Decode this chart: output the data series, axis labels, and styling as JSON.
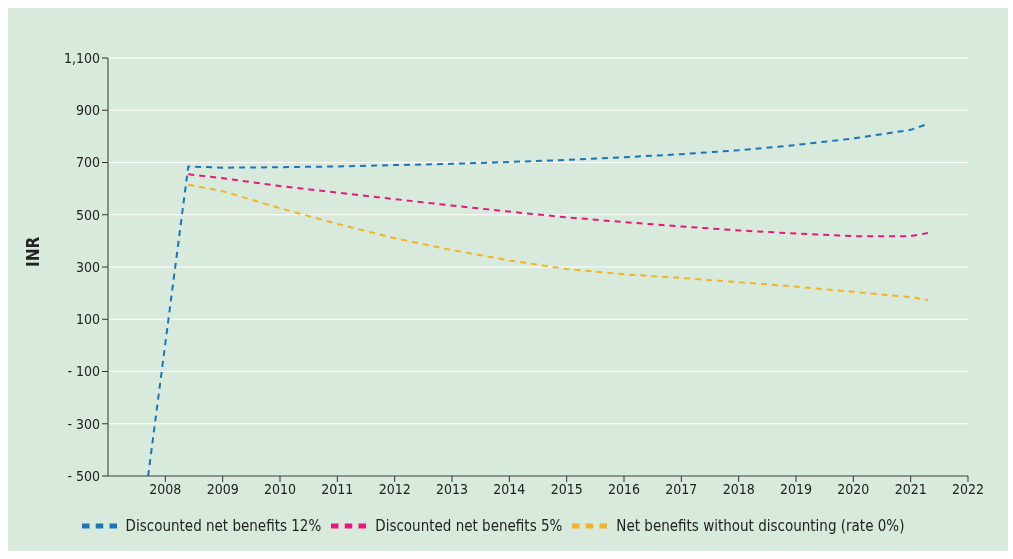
{
  "chart_data": {
    "type": "line",
    "ylabel": "INR",
    "line_style": "dashed",
    "marker": "none",
    "grid": "y",
    "legend": "bottom",
    "xlim": [
      2007,
      2022
    ],
    "xticks": [
      2008,
      2009,
      2010,
      2011,
      2012,
      2013,
      2014,
      2015,
      2016,
      2017,
      2018,
      2019,
      2020,
      2021,
      2022
    ],
    "ylim": [
      -500,
      1100
    ],
    "yticks": [
      {
        "value": 1100,
        "label": "1,100"
      },
      900,
      700,
      500,
      300,
      100,
      {
        "value": -100,
        "label": "- 100"
      },
      {
        "value": -300,
        "label": "- 300"
      },
      {
        "value": -500,
        "label": "- 500"
      }
    ],
    "series": [
      {
        "name": "Net benefits without discounting (rate 0%)",
        "color": "#f5b324",
        "x": [
          2008.4,
          2009,
          2010,
          2011,
          2012,
          2013,
          2014,
          2015,
          2016,
          2017,
          2018,
          2019,
          2020,
          2021,
          2021.3
        ],
        "values": [
          615,
          590,
          525,
          465,
          410,
          365,
          325,
          292,
          272,
          258,
          242,
          225,
          205,
          185,
          174
        ]
      },
      {
        "name": "Discounted net benefits 5%",
        "color": "#e5197d",
        "x": [
          2008.4,
          2009,
          2010,
          2011,
          2012,
          2013,
          2014,
          2015,
          2016,
          2017,
          2018,
          2019,
          2020,
          2021,
          2021.3
        ],
        "values": [
          655,
          640,
          610,
          585,
          560,
          535,
          512,
          490,
          472,
          455,
          440,
          428,
          418,
          418,
          430
        ]
      },
      {
        "name": "Discounted net benefits 12%",
        "color": "#1a75bb",
        "x": [
          2007.7,
          2008.4,
          2009,
          2010,
          2011,
          2012,
          2013,
          2014,
          2015,
          2016,
          2017,
          2018,
          2019,
          2020,
          2021,
          2021.3
        ],
        "values": [
          -500,
          685,
          680,
          682,
          685,
          690,
          695,
          702,
          710,
          720,
          732,
          747,
          767,
          792,
          825,
          848
        ]
      }
    ]
  }
}
